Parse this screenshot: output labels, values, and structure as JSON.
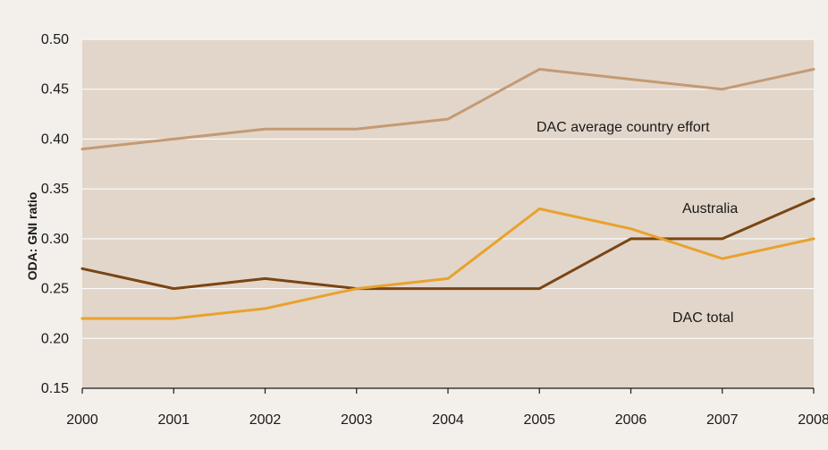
{
  "chart_data": {
    "type": "line",
    "title": "",
    "xlabel": "",
    "ylabel": "ODA: GNI ratio",
    "x": [
      "2000",
      "2001",
      "2002",
      "2003",
      "2004",
      "2005",
      "2006",
      "2007",
      "2008"
    ],
    "ylim": [
      0.15,
      0.5
    ],
    "yticks": [
      "0.15",
      "0.20",
      "0.25",
      "0.30",
      "0.35",
      "0.40",
      "0.45",
      "0.50"
    ],
    "grid": true,
    "series": [
      {
        "name": "DAC average country effort",
        "color": "#c49a74",
        "values": [
          0.39,
          0.4,
          0.41,
          0.41,
          0.42,
          0.47,
          0.46,
          0.45,
          0.47
        ]
      },
      {
        "name": "Australia",
        "color": "#7a4514",
        "values": [
          0.27,
          0.25,
          0.26,
          0.25,
          0.25,
          0.25,
          0.3,
          0.3,
          0.34
        ]
      },
      {
        "name": "DAC total",
        "color": "#e8a22e",
        "values": [
          0.22,
          0.22,
          0.23,
          0.25,
          0.26,
          0.33,
          0.31,
          0.28,
          0.3
        ]
      }
    ],
    "colors": {
      "page_background": "#f3efea",
      "plot_background": "#e2d6ca",
      "gridline": "#ffffff"
    }
  }
}
